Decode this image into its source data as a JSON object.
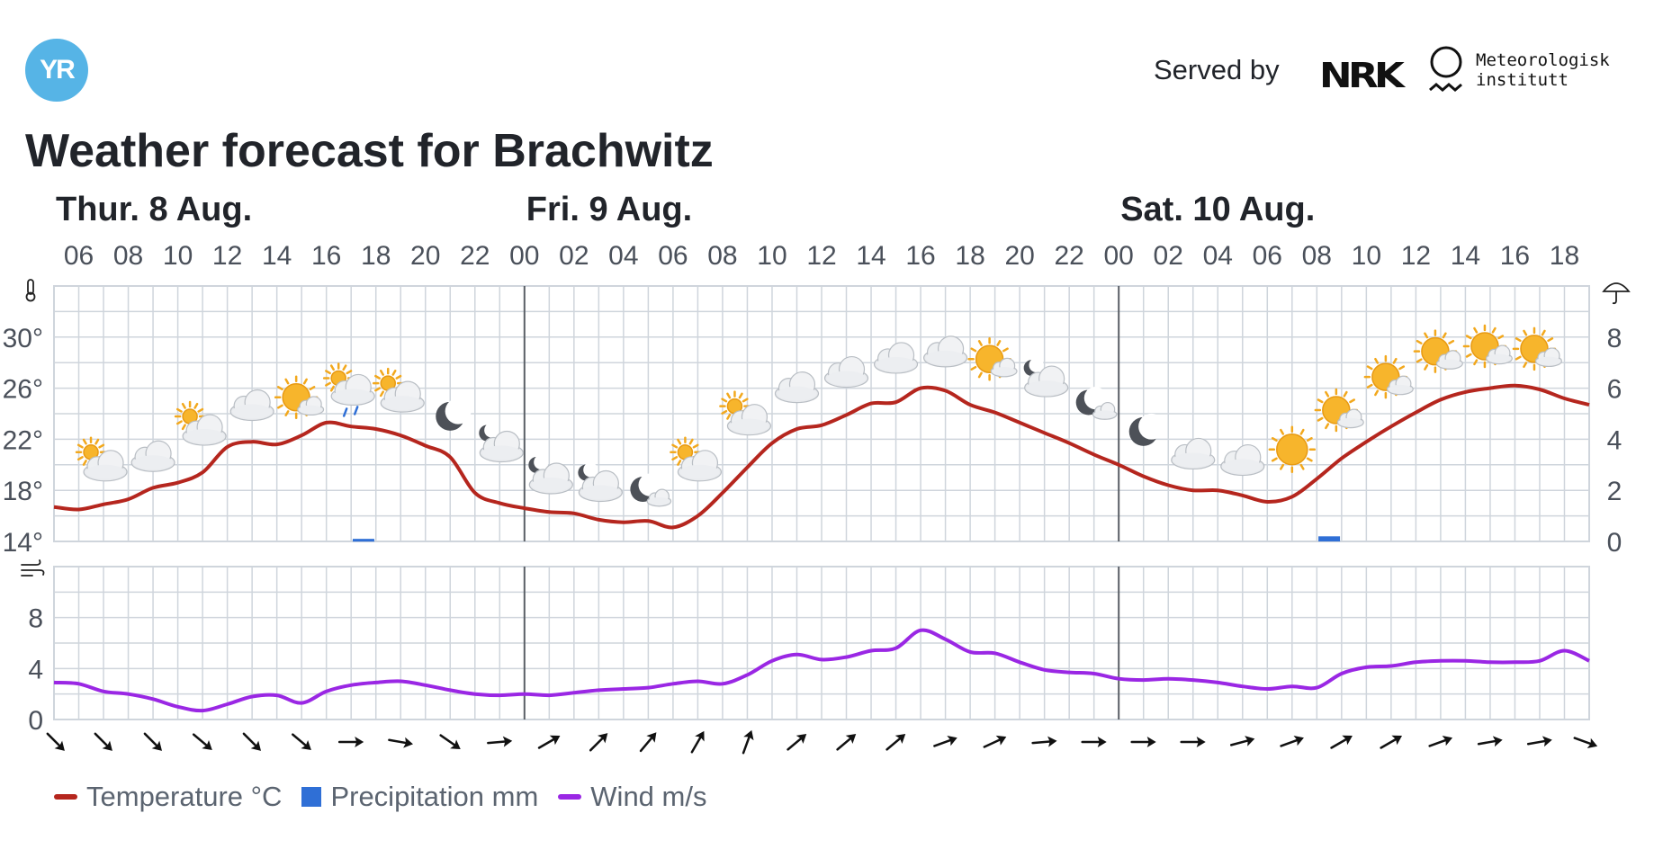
{
  "header": {
    "logo_text": "YR",
    "served_by": "Served by",
    "nrk_text": "NRK",
    "met_line1": "Meteorologisk",
    "met_line2": "institutt"
  },
  "title": "Weather forecast for Brachwitz",
  "legend": [
    {
      "label": "Temperature °C",
      "color": "#b5261e",
      "kind": "line"
    },
    {
      "label": "Precipitation mm",
      "color": "#2f6fd6",
      "kind": "box"
    },
    {
      "label": "Wind m/s",
      "color": "#9a27e4",
      "kind": "line"
    }
  ],
  "colors": {
    "temperature": "#b5261e",
    "precipitation": "#2f6fd6",
    "wind": "#9a27e4",
    "grid": "#cfd5dc",
    "day_divider": "#5a5f66",
    "axis_text": "#4a505a"
  },
  "chart_data": {
    "type": "line",
    "days": [
      {
        "label": "Thur. 8 Aug.",
        "start_hour": 5
      },
      {
        "label": "Fri. 9 Aug.",
        "start_hour": 24
      },
      {
        "label": "Sat. 10 Aug.",
        "start_hour": 48
      }
    ],
    "hour_range": [
      5,
      67
    ],
    "hour_ticks": [
      {
        "h": 6,
        "label": "06"
      },
      {
        "h": 8,
        "label": "08"
      },
      {
        "h": 10,
        "label": "10"
      },
      {
        "h": 12,
        "label": "12"
      },
      {
        "h": 14,
        "label": "14"
      },
      {
        "h": 16,
        "label": "16"
      },
      {
        "h": 18,
        "label": "18"
      },
      {
        "h": 20,
        "label": "20"
      },
      {
        "h": 22,
        "label": "22"
      },
      {
        "h": 24,
        "label": "00"
      },
      {
        "h": 26,
        "label": "02"
      },
      {
        "h": 28,
        "label": "04"
      },
      {
        "h": 30,
        "label": "06"
      },
      {
        "h": 32,
        "label": "08"
      },
      {
        "h": 34,
        "label": "10"
      },
      {
        "h": 36,
        "label": "12"
      },
      {
        "h": 38,
        "label": "14"
      },
      {
        "h": 40,
        "label": "16"
      },
      {
        "h": 42,
        "label": "18"
      },
      {
        "h": 44,
        "label": "20"
      },
      {
        "h": 46,
        "label": "22"
      },
      {
        "h": 48,
        "label": "00"
      },
      {
        "h": 50,
        "label": "02"
      },
      {
        "h": 52,
        "label": "04"
      },
      {
        "h": 54,
        "label": "06"
      },
      {
        "h": 56,
        "label": "08"
      },
      {
        "h": 58,
        "label": "10"
      },
      {
        "h": 60,
        "label": "12"
      },
      {
        "h": 62,
        "label": "14"
      },
      {
        "h": 64,
        "label": "16"
      },
      {
        "h": 66,
        "label": "18"
      }
    ],
    "temperature_axis": {
      "range": [
        14,
        34
      ],
      "ticks": [
        {
          "v": 14,
          "label": "14°"
        },
        {
          "v": 18,
          "label": "18°"
        },
        {
          "v": 22,
          "label": "22°"
        },
        {
          "v": 26,
          "label": "26°"
        },
        {
          "v": 30,
          "label": "30°"
        }
      ]
    },
    "precipitation_axis": {
      "range": [
        0,
        10
      ],
      "ticks": [
        {
          "v": 0,
          "label": "0"
        },
        {
          "v": 2,
          "label": "2"
        },
        {
          "v": 4,
          "label": "4"
        },
        {
          "v": 6,
          "label": "6"
        },
        {
          "v": 8,
          "label": "8"
        }
      ]
    },
    "wind_axis": {
      "range": [
        0,
        12
      ],
      "ticks": [
        {
          "v": 0,
          "label": "0"
        },
        {
          "v": 4,
          "label": "4"
        },
        {
          "v": 8,
          "label": "8"
        }
      ]
    },
    "temperature": [
      {
        "h": 5,
        "v": 16.7
      },
      {
        "h": 6,
        "v": 16.5
      },
      {
        "h": 7,
        "v": 16.9
      },
      {
        "h": 8,
        "v": 17.3
      },
      {
        "h": 9,
        "v": 18.2
      },
      {
        "h": 10,
        "v": 18.6
      },
      {
        "h": 11,
        "v": 19.4
      },
      {
        "h": 12,
        "v": 21.4
      },
      {
        "h": 13,
        "v": 21.8
      },
      {
        "h": 14,
        "v": 21.6
      },
      {
        "h": 15,
        "v": 22.3
      },
      {
        "h": 16,
        "v": 23.3
      },
      {
        "h": 17,
        "v": 23.0
      },
      {
        "h": 18,
        "v": 22.8
      },
      {
        "h": 19,
        "v": 22.3
      },
      {
        "h": 20,
        "v": 21.5
      },
      {
        "h": 21,
        "v": 20.6
      },
      {
        "h": 22,
        "v": 17.8
      },
      {
        "h": 23,
        "v": 17.0
      },
      {
        "h": 24,
        "v": 16.6
      },
      {
        "h": 25,
        "v": 16.3
      },
      {
        "h": 26,
        "v": 16.2
      },
      {
        "h": 27,
        "v": 15.7
      },
      {
        "h": 28,
        "v": 15.5
      },
      {
        "h": 29,
        "v": 15.6
      },
      {
        "h": 30,
        "v": 15.1
      },
      {
        "h": 31,
        "v": 16.0
      },
      {
        "h": 32,
        "v": 17.8
      },
      {
        "h": 33,
        "v": 19.8
      },
      {
        "h": 34,
        "v": 21.7
      },
      {
        "h": 35,
        "v": 22.8
      },
      {
        "h": 36,
        "v": 23.1
      },
      {
        "h": 37,
        "v": 23.9
      },
      {
        "h": 38,
        "v": 24.8
      },
      {
        "h": 39,
        "v": 24.9
      },
      {
        "h": 40,
        "v": 26.0
      },
      {
        "h": 41,
        "v": 25.8
      },
      {
        "h": 42,
        "v": 24.7
      },
      {
        "h": 43,
        "v": 24.1
      },
      {
        "h": 44,
        "v": 23.3
      },
      {
        "h": 45,
        "v": 22.5
      },
      {
        "h": 46,
        "v": 21.7
      },
      {
        "h": 47,
        "v": 20.8
      },
      {
        "h": 48,
        "v": 20.0
      },
      {
        "h": 49,
        "v": 19.1
      },
      {
        "h": 50,
        "v": 18.4
      },
      {
        "h": 51,
        "v": 18.0
      },
      {
        "h": 52,
        "v": 18.0
      },
      {
        "h": 53,
        "v": 17.6
      },
      {
        "h": 54,
        "v": 17.1
      },
      {
        "h": 55,
        "v": 17.5
      },
      {
        "h": 56,
        "v": 18.9
      },
      {
        "h": 57,
        "v": 20.5
      },
      {
        "h": 58,
        "v": 21.8
      },
      {
        "h": 59,
        "v": 23.0
      },
      {
        "h": 60,
        "v": 24.1
      },
      {
        "h": 61,
        "v": 25.1
      },
      {
        "h": 62,
        "v": 25.7
      },
      {
        "h": 63,
        "v": 26.0
      },
      {
        "h": 64,
        "v": 26.2
      },
      {
        "h": 65,
        "v": 25.9
      },
      {
        "h": 66,
        "v": 25.2
      },
      {
        "h": 67,
        "v": 24.7
      }
    ],
    "precipitation": [
      {
        "h": 17.5,
        "v": 0.1
      },
      {
        "h": 56.5,
        "v": 0.2
      }
    ],
    "wind": [
      {
        "h": 5,
        "v": 2.9
      },
      {
        "h": 6,
        "v": 2.8
      },
      {
        "h": 7,
        "v": 2.2
      },
      {
        "h": 8,
        "v": 2.0
      },
      {
        "h": 9,
        "v": 1.6
      },
      {
        "h": 10,
        "v": 1.0
      },
      {
        "h": 11,
        "v": 0.7
      },
      {
        "h": 12,
        "v": 1.2
      },
      {
        "h": 13,
        "v": 1.8
      },
      {
        "h": 14,
        "v": 1.9
      },
      {
        "h": 15,
        "v": 1.3
      },
      {
        "h": 16,
        "v": 2.2
      },
      {
        "h": 17,
        "v": 2.7
      },
      {
        "h": 18,
        "v": 2.9
      },
      {
        "h": 19,
        "v": 3.0
      },
      {
        "h": 20,
        "v": 2.7
      },
      {
        "h": 21,
        "v": 2.3
      },
      {
        "h": 22,
        "v": 2.0
      },
      {
        "h": 23,
        "v": 1.9
      },
      {
        "h": 24,
        "v": 2.0
      },
      {
        "h": 25,
        "v": 1.9
      },
      {
        "h": 26,
        "v": 2.1
      },
      {
        "h": 27,
        "v": 2.3
      },
      {
        "h": 28,
        "v": 2.4
      },
      {
        "h": 29,
        "v": 2.5
      },
      {
        "h": 30,
        "v": 2.8
      },
      {
        "h": 31,
        "v": 3.0
      },
      {
        "h": 32,
        "v": 2.8
      },
      {
        "h": 33,
        "v": 3.5
      },
      {
        "h": 34,
        "v": 4.6
      },
      {
        "h": 35,
        "v": 5.1
      },
      {
        "h": 36,
        "v": 4.7
      },
      {
        "h": 37,
        "v": 4.9
      },
      {
        "h": 38,
        "v": 5.4
      },
      {
        "h": 39,
        "v": 5.6
      },
      {
        "h": 40,
        "v": 7.0
      },
      {
        "h": 41,
        "v": 6.3
      },
      {
        "h": 42,
        "v": 5.3
      },
      {
        "h": 43,
        "v": 5.2
      },
      {
        "h": 44,
        "v": 4.5
      },
      {
        "h": 45,
        "v": 3.9
      },
      {
        "h": 46,
        "v": 3.7
      },
      {
        "h": 47,
        "v": 3.6
      },
      {
        "h": 48,
        "v": 3.2
      },
      {
        "h": 49,
        "v": 3.1
      },
      {
        "h": 50,
        "v": 3.2
      },
      {
        "h": 51,
        "v": 3.1
      },
      {
        "h": 52,
        "v": 2.9
      },
      {
        "h": 53,
        "v": 2.6
      },
      {
        "h": 54,
        "v": 2.4
      },
      {
        "h": 55,
        "v": 2.6
      },
      {
        "h": 56,
        "v": 2.5
      },
      {
        "h": 57,
        "v": 3.6
      },
      {
        "h": 58,
        "v": 4.1
      },
      {
        "h": 59,
        "v": 4.2
      },
      {
        "h": 60,
        "v": 4.5
      },
      {
        "h": 61,
        "v": 4.6
      },
      {
        "h": 62,
        "v": 4.6
      },
      {
        "h": 63,
        "v": 4.5
      },
      {
        "h": 64,
        "v": 4.5
      },
      {
        "h": 65,
        "v": 4.6
      },
      {
        "h": 66,
        "v": 5.4
      },
      {
        "h": 67,
        "v": 4.6
      }
    ],
    "wind_directions": [
      {
        "h": 5,
        "dir": 135
      },
      {
        "h": 7,
        "dir": 135
      },
      {
        "h": 9,
        "dir": 135
      },
      {
        "h": 11,
        "dir": 130
      },
      {
        "h": 13,
        "dir": 135
      },
      {
        "h": 15,
        "dir": 130
      },
      {
        "h": 17,
        "dir": 90
      },
      {
        "h": 19,
        "dir": 100
      },
      {
        "h": 21,
        "dir": 125
      },
      {
        "h": 23,
        "dir": 85
      },
      {
        "h": 25,
        "dir": 60
      },
      {
        "h": 27,
        "dir": 45
      },
      {
        "h": 29,
        "dir": 40
      },
      {
        "h": 31,
        "dir": 30
      },
      {
        "h": 33,
        "dir": 20
      },
      {
        "h": 35,
        "dir": 50
      },
      {
        "h": 37,
        "dir": 50
      },
      {
        "h": 39,
        "dir": 50
      },
      {
        "h": 41,
        "dir": 70
      },
      {
        "h": 43,
        "dir": 65
      },
      {
        "h": 45,
        "dir": 85
      },
      {
        "h": 47,
        "dir": 90
      },
      {
        "h": 49,
        "dir": 90
      },
      {
        "h": 51,
        "dir": 90
      },
      {
        "h": 53,
        "dir": 75
      },
      {
        "h": 55,
        "dir": 70
      },
      {
        "h": 57,
        "dir": 60
      },
      {
        "h": 59,
        "dir": 60
      },
      {
        "h": 61,
        "dir": 70
      },
      {
        "h": 63,
        "dir": 80
      },
      {
        "h": 65,
        "dir": 80
      },
      {
        "h": 67,
        "dir": 110
      }
    ],
    "symbols": [
      {
        "h": 7,
        "v": 20.0,
        "kind": "partly-cloudy-day"
      },
      {
        "h": 9,
        "v": 20.6,
        "kind": "cloudy"
      },
      {
        "h": 11,
        "v": 22.8,
        "kind": "partly-cloudy-day"
      },
      {
        "h": 13,
        "v": 24.6,
        "kind": "cloudy"
      },
      {
        "h": 15,
        "v": 25.0,
        "kind": "fair-day"
      },
      {
        "h": 17,
        "v": 25.8,
        "kind": "rain-showers"
      },
      {
        "h": 19,
        "v": 25.4,
        "kind": "partly-cloudy-day"
      },
      {
        "h": 21,
        "v": 23.8,
        "kind": "clear-night"
      },
      {
        "h": 23,
        "v": 21.5,
        "kind": "partly-cloudy-night"
      },
      {
        "h": 25,
        "v": 19.0,
        "kind": "partly-cloudy-night"
      },
      {
        "h": 27,
        "v": 18.4,
        "kind": "partly-cloudy-night"
      },
      {
        "h": 29,
        "v": 17.8,
        "kind": "fair-night"
      },
      {
        "h": 31,
        "v": 20.0,
        "kind": "partly-cloudy-day"
      },
      {
        "h": 33,
        "v": 23.6,
        "kind": "partly-cloudy-day"
      },
      {
        "h": 35,
        "v": 26.0,
        "kind": "cloudy"
      },
      {
        "h": 37,
        "v": 27.2,
        "kind": "cloudy"
      },
      {
        "h": 39,
        "v": 28.3,
        "kind": "cloudy"
      },
      {
        "h": 41,
        "v": 28.8,
        "kind": "cloudy"
      },
      {
        "h": 43,
        "v": 28.0,
        "kind": "fair-day"
      },
      {
        "h": 45,
        "v": 26.6,
        "kind": "partly-cloudy-night"
      },
      {
        "h": 47,
        "v": 24.6,
        "kind": "fair-night"
      },
      {
        "h": 49,
        "v": 22.6,
        "kind": "clear-night"
      },
      {
        "h": 51,
        "v": 20.8,
        "kind": "cloudy"
      },
      {
        "h": 53,
        "v": 20.3,
        "kind": "cloudy"
      },
      {
        "h": 55,
        "v": 21.2,
        "kind": "clear-day"
      },
      {
        "h": 57,
        "v": 24.0,
        "kind": "fair-day"
      },
      {
        "h": 59,
        "v": 26.6,
        "kind": "fair-day"
      },
      {
        "h": 61,
        "v": 28.6,
        "kind": "fair-day"
      },
      {
        "h": 63,
        "v": 29.0,
        "kind": "fair-day"
      },
      {
        "h": 65,
        "v": 28.8,
        "kind": "fair-day"
      }
    ]
  }
}
